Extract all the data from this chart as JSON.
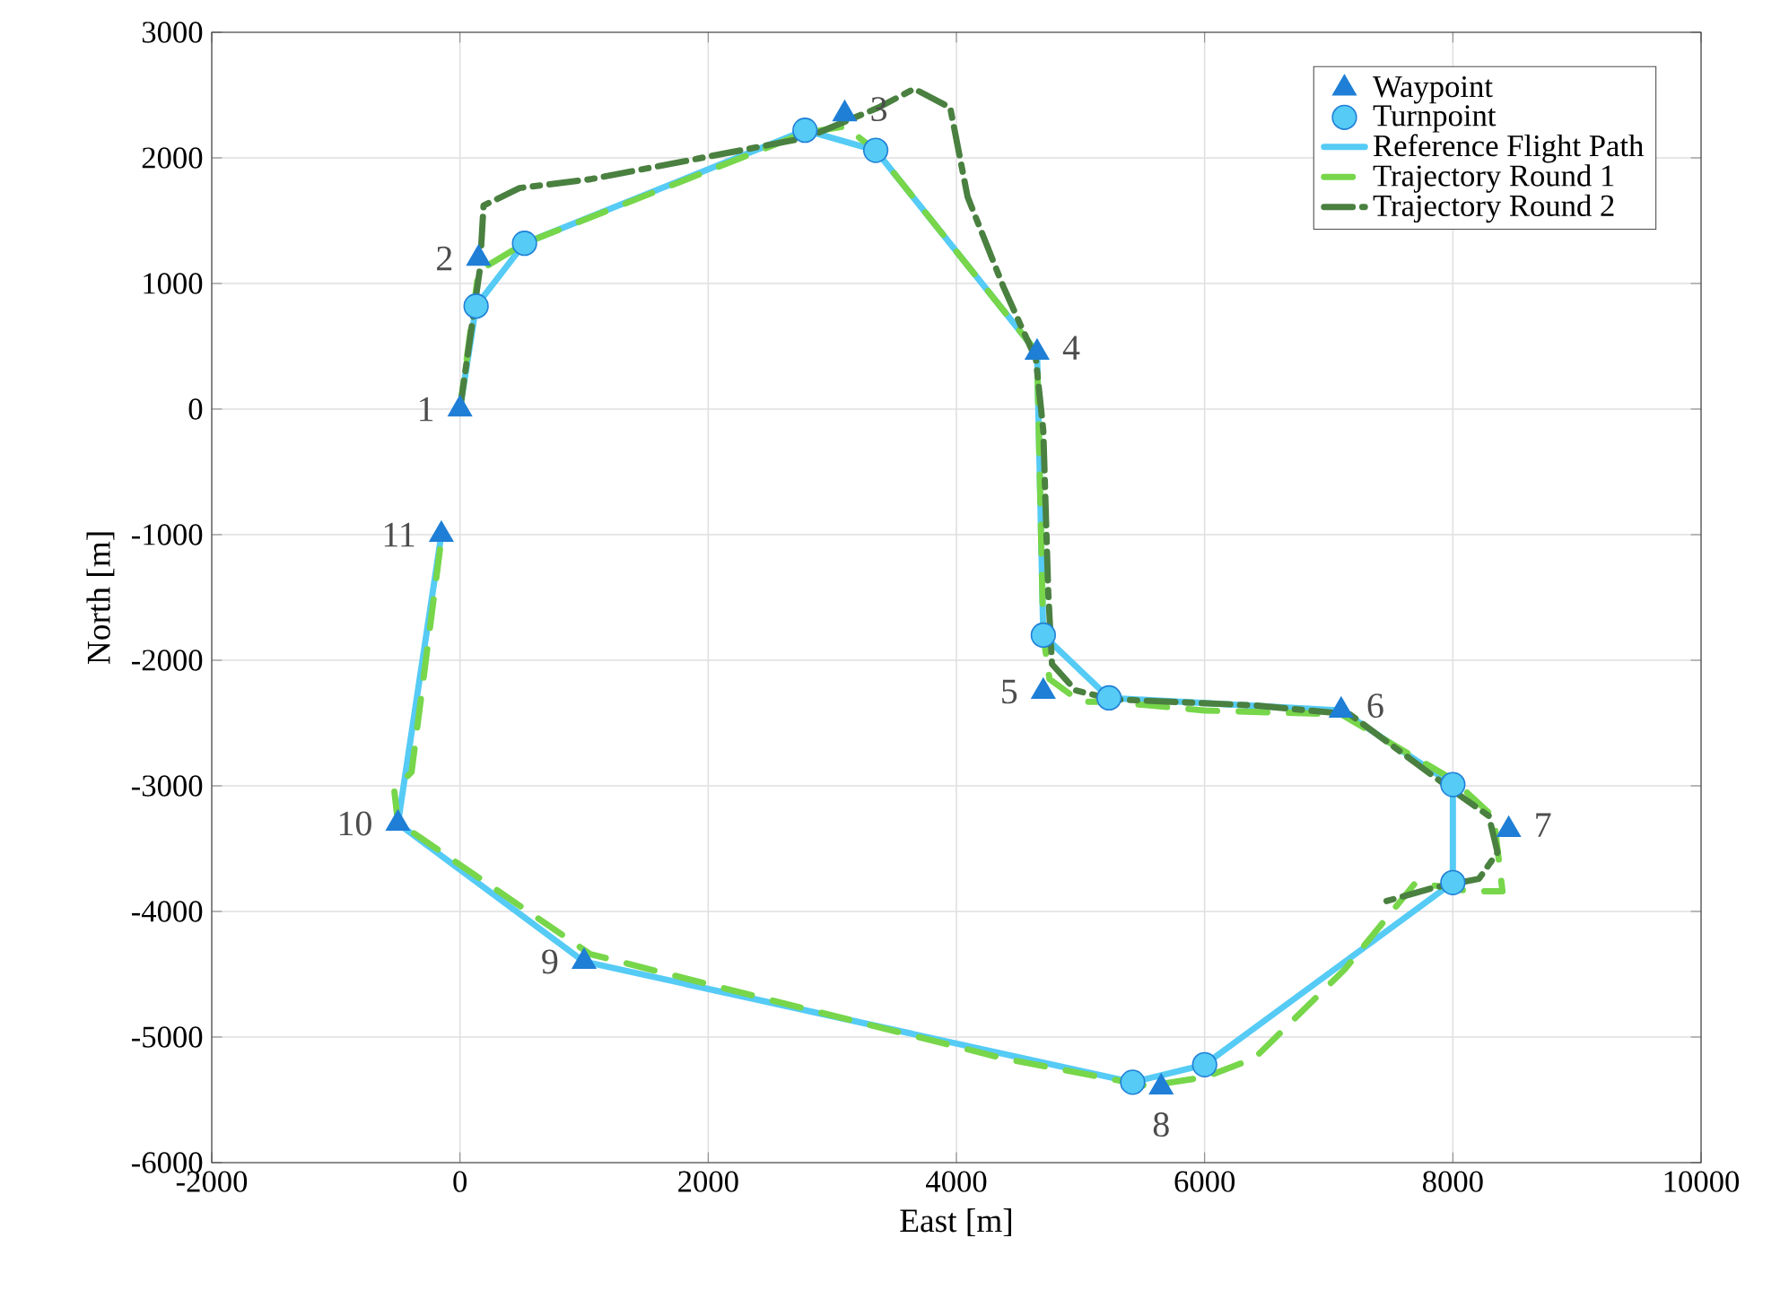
{
  "chart_data": {
    "type": "line",
    "xlabel": "East [m]",
    "ylabel": "North [m]",
    "xlim": [
      -2000,
      10000
    ],
    "ylim": [
      -6000,
      3000
    ],
    "xticks": [
      -2000,
      0,
      2000,
      4000,
      6000,
      8000,
      10000
    ],
    "yticks": [
      -6000,
      -5000,
      -4000,
      -3000,
      -2000,
      -1000,
      0,
      1000,
      2000,
      3000
    ],
    "grid": true,
    "legend": "top right",
    "series": [
      {
        "name": "Waypoint",
        "type": "scatter",
        "marker": "triangle",
        "color": "#1f7fd6",
        "x": [
          0,
          150,
          3100,
          4650,
          4700,
          7100,
          8450,
          5650,
          1000,
          -500,
          -150
        ],
        "values": [
          0,
          1200,
          2350,
          450,
          -2250,
          -2400,
          -3350,
          -5400,
          -4400,
          -3300,
          -1000
        ]
      },
      {
        "name": "Turnpoint",
        "type": "scatter",
        "marker": "circle",
        "color": "#55cbf5",
        "x": [
          130,
          520,
          2780,
          3350,
          4700,
          5230,
          8000,
          8000,
          6000,
          5420
        ],
        "values": [
          820,
          1320,
          2220,
          2060,
          -1800,
          -2300,
          -2990,
          -3770,
          -5220,
          -5360
        ]
      },
      {
        "name": "Reference Flight Path",
        "line_style": "solid",
        "color": "#55cbf5",
        "x": [
          0,
          130,
          520,
          2780,
          3350,
          4650,
          4700,
          5230,
          7100,
          8000,
          8000,
          6000,
          5420,
          1000,
          -500,
          -150
        ],
        "values": [
          0,
          820,
          1320,
          2220,
          2060,
          450,
          -1800,
          -2300,
          -2400,
          -2990,
          -3770,
          -5220,
          -5360,
          -4400,
          -3300,
          -1000
        ]
      },
      {
        "name": "Trajectory Round 1",
        "line_style": "dashed",
        "color": "#77d64a",
        "x": [
          0,
          150,
          520,
          2780,
          3100,
          3350,
          4650,
          4700,
          4750,
          5000,
          5230,
          6000,
          7100,
          8000,
          8330,
          8400,
          8140,
          7700,
          7130,
          6400,
          6000,
          5540,
          4380,
          2360,
          1050,
          -500,
          -530,
          -390,
          -150
        ],
        "values": [
          0,
          1100,
          1320,
          2200,
          2250,
          2060,
          450,
          -1800,
          -2150,
          -2330,
          -2330,
          -2400,
          -2430,
          -2950,
          -3250,
          -3840,
          -3840,
          -3770,
          -4460,
          -5170,
          -5320,
          -5390,
          -5170,
          -4670,
          -4340,
          -3290,
          -3030,
          -2890,
          -1030
        ]
      },
      {
        "name": "Trajectory Round 2",
        "line_style": "dashdot",
        "color": "#4a8040",
        "x": [
          0,
          160,
          190,
          480,
          1050,
          2790,
          3370,
          3660,
          3950,
          4090,
          4380,
          4640,
          4700,
          4740,
          4770,
          4960,
          5250,
          6410,
          7170,
          7990,
          8290,
          8360,
          8210,
          7850,
          7420
        ],
        "values": [
          0,
          1110,
          1620,
          1760,
          1830,
          2160,
          2400,
          2550,
          2400,
          1690,
          970,
          400,
          -170,
          -1460,
          -2030,
          -2240,
          -2310,
          -2360,
          -2430,
          -3030,
          -3240,
          -3530,
          -3740,
          -3810,
          -3930
        ]
      }
    ],
    "annotations": [
      {
        "text": "1",
        "x": 0,
        "y": 0
      },
      {
        "text": "2",
        "x": 150,
        "y": 1200
      },
      {
        "text": "3",
        "x": 3100,
        "y": 2350
      },
      {
        "text": "4",
        "x": 4650,
        "y": 450
      },
      {
        "text": "5",
        "x": 4700,
        "y": -2250
      },
      {
        "text": "6",
        "x": 7100,
        "y": -2400
      },
      {
        "text": "7",
        "x": 8450,
        "y": -3350
      },
      {
        "text": "8",
        "x": 5650,
        "y": -5400
      },
      {
        "text": "9",
        "x": 1000,
        "y": -4400
      },
      {
        "text": "10",
        "x": -500,
        "y": -3300
      },
      {
        "text": "11",
        "x": -150,
        "y": -1000
      }
    ]
  }
}
